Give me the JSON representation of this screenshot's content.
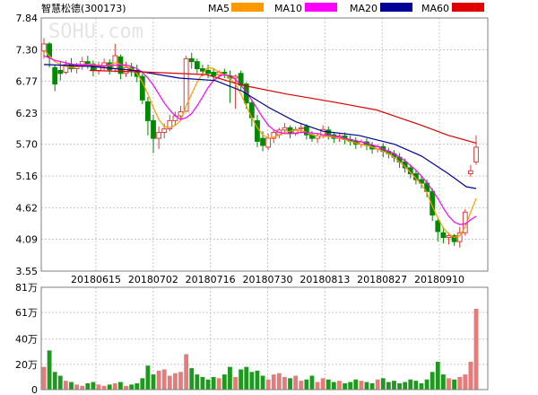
{
  "header": {
    "stock_title": "智慧松德(300173)",
    "legend": [
      {
        "label": "MA5",
        "color": "#ff9900"
      },
      {
        "label": "MA10",
        "color": "#ff00ff"
      },
      {
        "label": "MA20",
        "color": "#000099"
      },
      {
        "label": "MA60",
        "color": "#e10000"
      }
    ]
  },
  "watermark": "SOHU.com",
  "colors": {
    "up": "#e13c3c",
    "down": "#008a00",
    "grid": "#c8c8c8",
    "vol_up": "#e87a7a",
    "vol_down": "#1d9a1d"
  },
  "chart_data": [
    {
      "type": "candlestick",
      "yticks": [
        "7.84",
        "7.30",
        "6.77",
        "6.23",
        "5.70",
        "5.16",
        "4.62",
        "4.09",
        "3.55"
      ],
      "ylim": [
        3.55,
        7.84
      ],
      "xticks": [
        "20180615",
        "20180702",
        "20180716",
        "20180730",
        "20180813",
        "20180827",
        "20180910"
      ],
      "candles": [
        [
          7.28,
          7.5,
          7.4,
          7.15
        ],
        [
          7.4,
          7.43,
          7.18,
          7.0
        ],
        [
          7.0,
          7.05,
          6.72,
          6.6
        ],
        [
          6.95,
          7.1,
          6.9,
          6.78
        ],
        [
          6.92,
          7.12,
          7.05,
          6.88
        ],
        [
          7.05,
          7.16,
          6.98,
          6.92
        ],
        [
          6.98,
          7.08,
          7.02,
          6.9
        ],
        [
          7.02,
          7.18,
          7.1,
          6.96
        ],
        [
          7.1,
          7.2,
          7.06,
          6.98
        ],
        [
          7.06,
          7.12,
          6.95,
          6.85
        ],
        [
          6.95,
          7.1,
          7.02,
          6.88
        ],
        [
          7.02,
          7.15,
          7.08,
          6.94
        ],
        [
          7.08,
          7.14,
          6.96,
          6.88
        ],
        [
          6.98,
          7.4,
          7.2,
          6.92
        ],
        [
          7.18,
          7.22,
          6.9,
          6.8
        ],
        [
          6.9,
          7.1,
          7.0,
          6.84
        ],
        [
          7.0,
          7.08,
          6.95,
          6.85
        ],
        [
          6.95,
          7.05,
          6.85,
          6.75
        ],
        [
          6.85,
          6.9,
          6.45,
          6.38
        ],
        [
          6.42,
          6.5,
          6.1,
          5.85
        ],
        [
          6.1,
          6.2,
          5.8,
          5.55
        ],
        [
          5.8,
          6.0,
          5.9,
          5.62
        ],
        [
          5.9,
          6.05,
          5.96,
          5.8
        ],
        [
          5.96,
          6.2,
          6.1,
          5.92
        ],
        [
          6.1,
          6.25,
          6.18,
          6.02
        ],
        [
          6.18,
          6.35,
          6.25,
          6.1
        ],
        [
          6.26,
          7.2,
          7.15,
          6.25
        ],
        [
          7.15,
          7.25,
          7.1,
          6.98
        ],
        [
          7.1,
          7.15,
          6.98,
          6.9
        ],
        [
          6.98,
          7.05,
          6.94,
          6.85
        ],
        [
          6.95,
          7.05,
          6.9,
          6.82
        ],
        [
          6.92,
          6.98,
          6.86,
          6.78
        ],
        [
          6.88,
          6.95,
          6.92,
          6.8
        ],
        [
          6.92,
          6.98,
          6.9,
          6.82
        ],
        [
          6.86,
          6.95,
          6.82,
          6.4
        ],
        [
          6.82,
          6.88,
          6.85,
          6.3
        ],
        [
          6.9,
          6.95,
          6.7,
          6.6
        ],
        [
          6.72,
          6.75,
          6.4,
          6.3
        ],
        [
          6.4,
          6.45,
          6.15,
          6.0
        ],
        [
          6.1,
          6.2,
          5.75,
          5.65
        ],
        [
          5.8,
          5.92,
          5.68,
          5.58
        ],
        [
          5.65,
          5.88,
          5.8,
          5.6
        ],
        [
          5.8,
          5.95,
          5.9,
          5.72
        ],
        [
          5.86,
          5.98,
          5.94,
          5.8
        ],
        [
          5.94,
          6.06,
          5.98,
          5.88
        ],
        [
          5.98,
          6.02,
          5.88,
          5.8
        ],
        [
          5.88,
          6.0,
          5.95,
          5.84
        ],
        [
          5.96,
          6.04,
          5.98,
          5.9
        ],
        [
          6.0,
          6.04,
          5.86,
          5.78
        ],
        [
          5.86,
          5.92,
          5.8,
          5.74
        ],
        [
          5.8,
          5.88,
          5.84,
          5.72
        ],
        [
          5.84,
          6.02,
          5.95,
          5.8
        ],
        [
          5.94,
          6.0,
          5.85,
          5.78
        ],
        [
          5.86,
          5.9,
          5.8,
          5.72
        ],
        [
          5.8,
          5.88,
          5.84,
          5.74
        ],
        [
          5.84,
          5.9,
          5.78,
          5.7
        ],
        [
          5.78,
          5.85,
          5.75,
          5.68
        ],
        [
          5.75,
          5.82,
          5.7,
          5.62
        ],
        [
          5.7,
          5.78,
          5.74,
          5.64
        ],
        [
          5.74,
          5.8,
          5.68,
          5.6
        ],
        [
          5.68,
          5.74,
          5.62,
          5.54
        ],
        [
          5.62,
          5.7,
          5.66,
          5.56
        ],
        [
          5.66,
          5.72,
          5.58,
          5.48
        ],
        [
          5.58,
          5.64,
          5.54,
          5.46
        ],
        [
          5.54,
          5.6,
          5.48,
          5.4
        ],
        [
          5.48,
          5.55,
          5.4,
          5.3
        ],
        [
          5.4,
          5.46,
          5.3,
          5.22
        ],
        [
          5.3,
          5.36,
          5.2,
          5.12
        ],
        [
          5.2,
          5.26,
          5.1,
          5.02
        ],
        [
          5.1,
          5.16,
          5.04,
          4.95
        ],
        [
          5.04,
          5.1,
          4.9,
          4.8
        ],
        [
          4.9,
          4.95,
          4.5,
          4.4
        ],
        [
          4.4,
          4.45,
          4.22,
          4.05
        ],
        [
          4.2,
          4.3,
          4.12,
          4.02
        ],
        [
          4.12,
          4.2,
          4.15,
          4.0
        ],
        [
          4.15,
          4.18,
          4.05,
          3.98
        ],
        [
          4.05,
          4.3,
          4.2,
          3.95
        ],
        [
          4.2,
          4.6,
          4.55,
          4.15
        ],
        [
          5.2,
          5.35,
          5.25,
          5.15
        ],
        [
          5.4,
          5.85,
          5.65,
          5.35
        ]
      ],
      "ma5": [
        7.3,
        7.2,
        7.1,
        7.05,
        7.02,
        7.0,
        7.01,
        7.04,
        7.05,
        7.05,
        7.04,
        7.03,
        7.04,
        7.08,
        7.06,
        7.02,
        6.98,
        6.9,
        6.75,
        6.55,
        6.32,
        6.12,
        6.0,
        5.98,
        6.02,
        6.1,
        6.35,
        6.55,
        6.75,
        6.9,
        7.0,
        6.98,
        6.92,
        6.88,
        6.82,
        6.72,
        6.55,
        6.35,
        6.15,
        5.98,
        5.86,
        5.8,
        5.82,
        5.86,
        5.9,
        5.92,
        5.94,
        5.93,
        5.9,
        5.86,
        5.84,
        5.84,
        5.83,
        5.82,
        5.8,
        5.78,
        5.75,
        5.72,
        5.7,
        5.68,
        5.65,
        5.62,
        5.58,
        5.54,
        5.48,
        5.4,
        5.32,
        5.22,
        5.12,
        5.02,
        4.88,
        4.65,
        4.45,
        4.28,
        4.18,
        4.12,
        4.15,
        4.3,
        4.55,
        4.78
      ],
      "ma10": [
        7.2,
        7.16,
        7.12,
        7.1,
        7.08,
        7.06,
        7.05,
        7.05,
        7.04,
        7.04,
        7.03,
        7.03,
        7.03,
        7.04,
        7.05,
        7.04,
        7.02,
        6.98,
        6.92,
        6.82,
        6.7,
        6.55,
        6.4,
        6.28,
        6.18,
        6.12,
        6.15,
        6.22,
        6.35,
        6.5,
        6.66,
        6.78,
        6.85,
        6.88,
        6.86,
        6.8,
        6.7,
        6.58,
        6.45,
        6.3,
        6.15,
        6.02,
        5.94,
        5.9,
        5.88,
        5.88,
        5.89,
        5.9,
        5.9,
        5.89,
        5.88,
        5.86,
        5.85,
        5.84,
        5.82,
        5.8,
        5.78,
        5.76,
        5.74,
        5.72,
        5.69,
        5.66,
        5.62,
        5.58,
        5.54,
        5.48,
        5.42,
        5.34,
        5.26,
        5.16,
        5.05,
        4.92,
        4.78,
        4.62,
        4.48,
        4.38,
        4.34,
        4.35,
        4.42,
        4.48
      ]
    },
    {
      "type": "bar",
      "yticks": [
        "81万",
        "61万",
        "40万",
        "20万",
        "0"
      ],
      "ylim": [
        0,
        81
      ],
      "values": [
        18,
        31,
        14,
        11,
        7,
        6,
        4,
        3,
        5,
        6,
        4,
        3,
        4,
        5,
        6,
        3,
        4,
        5,
        9,
        19,
        12,
        15,
        16,
        11,
        13,
        14,
        28,
        17,
        12,
        10,
        8,
        10,
        9,
        12,
        18,
        10,
        16,
        18,
        14,
        15,
        11,
        8,
        12,
        13,
        10,
        9,
        11,
        7,
        8,
        11,
        6,
        9,
        8,
        6,
        7,
        5,
        6,
        8,
        7,
        6,
        5,
        8,
        9,
        6,
        7,
        5,
        6,
        8,
        7,
        5,
        8,
        14,
        22,
        12,
        9,
        8,
        10,
        12,
        22,
        64
      ]
    }
  ]
}
